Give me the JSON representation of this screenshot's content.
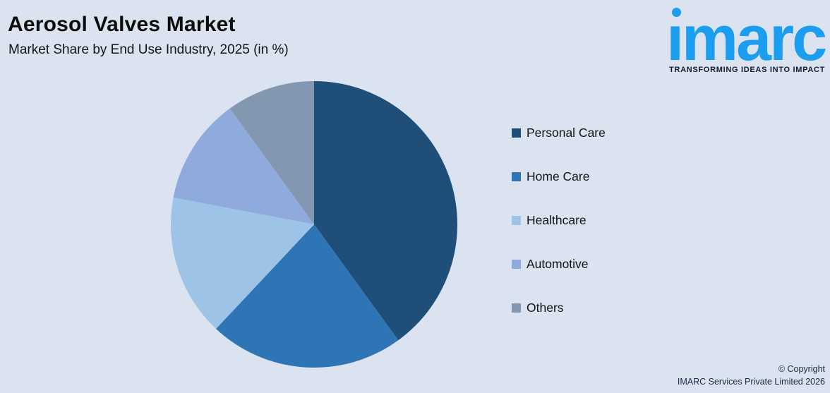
{
  "page": {
    "background_color": "#dbe2f0"
  },
  "logo": {
    "wordmark": "imarc",
    "tagline": "TRANSFORMING IDEAS INTO IMPACT",
    "brand_color": "#1b9df0",
    "dot_icon_color": "#1b9df0"
  },
  "chart_data": {
    "type": "pie",
    "title": "Aerosol Valves Market",
    "subtitle": "Market Share by End Use Industry, 2025 (in %)",
    "unit": "%",
    "labels": [
      "Personal Care",
      "Home Care",
      "Healthcare",
      "Automotive",
      "Others"
    ],
    "values": [
      40,
      22,
      16,
      12,
      10
    ],
    "colors": [
      "#1F4E79",
      "#2E75B6",
      "#9DC3E6",
      "#8FAADC",
      "#8497B0"
    ],
    "start_angle_deg": 0,
    "direction": "clockwise",
    "legend_position": "right",
    "data_labels_visible": false
  },
  "footer": {
    "line1": "© Copyright",
    "line2": "IMARC Services Private Limited 2026"
  }
}
